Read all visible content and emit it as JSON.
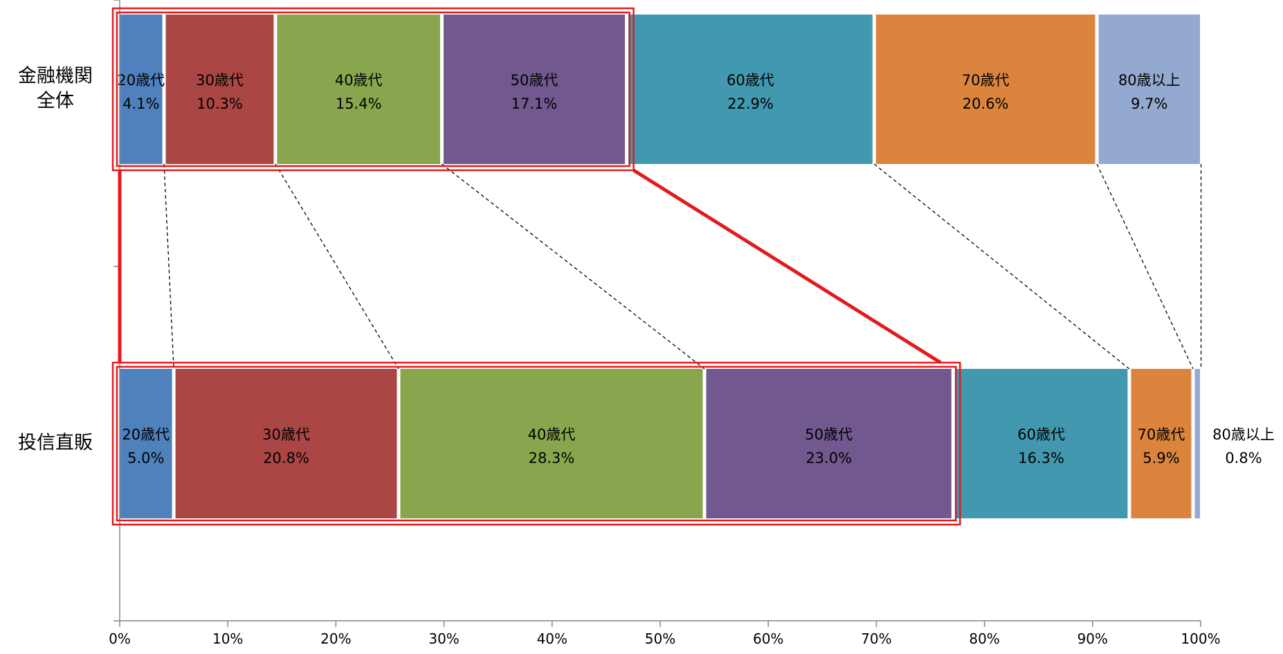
{
  "chart_data": {
    "type": "bar",
    "orientation": "horizontal-stacked-100",
    "title": "",
    "xlabel": "",
    "ylabel": "",
    "xlim": [
      0,
      100
    ],
    "x_ticks": [
      "0%",
      "10%",
      "20%",
      "30%",
      "40%",
      "50%",
      "60%",
      "70%",
      "80%",
      "90%",
      "100%"
    ],
    "categories": [
      "金融機関全体",
      "投信直販"
    ],
    "category_display": [
      [
        "金融機関",
        "全体"
      ],
      [
        "投信直販"
      ]
    ],
    "series": [
      {
        "name": "20歳代",
        "color": "#4F81BD",
        "values": [
          4.1,
          5.0
        ],
        "labels": [
          "4.1%",
          "5.0%"
        ]
      },
      {
        "name": "30歳代",
        "color": "#AA4644",
        "values": [
          10.3,
          20.8
        ],
        "labels": [
          "10.3%",
          "20.8%"
        ]
      },
      {
        "name": "40歳代",
        "color": "#89A64E",
        "values": [
          15.4,
          28.3
        ],
        "labels": [
          "15.4%",
          "28.3%"
        ]
      },
      {
        "name": "50歳代",
        "color": "#71588F",
        "values": [
          17.1,
          23.0
        ],
        "labels": [
          "17.1%",
          "23.0%"
        ]
      },
      {
        "name": "60歳代",
        "color": "#4198AF",
        "values": [
          22.9,
          16.3
        ],
        "labels": [
          "22.9%",
          "16.3%"
        ]
      },
      {
        "name": "70歳代",
        "color": "#DB843D",
        "values": [
          20.6,
          5.9
        ],
        "labels": [
          "20.6%",
          "5.9%"
        ]
      },
      {
        "name": "80歳以上",
        "color": "#93A9D0",
        "values": [
          9.7,
          0.8
        ],
        "labels": [
          "9.7%",
          "0.8%"
        ]
      }
    ],
    "grid": false,
    "legend": "none",
    "annotations": {
      "highlight_color": "#E31A1C",
      "highlight_range_series": [
        0,
        3
      ],
      "connector_style": "dashed"
    }
  }
}
